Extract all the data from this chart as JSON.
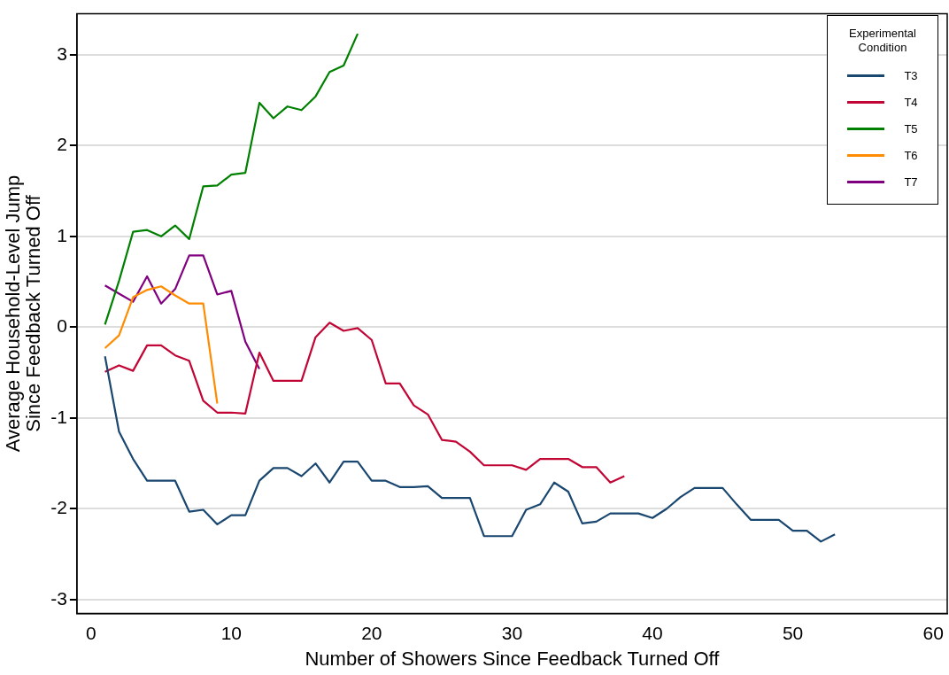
{
  "chart_data": {
    "type": "line",
    "xlabel": "Number of Showers Since Feedback Turned Off",
    "ylabel": "Average Household-Level Jump\nSince Feedback Turned Off",
    "legend_title": "Experimental\nCondition",
    "legend": "top right",
    "grid": "y",
    "line_style": "solid",
    "marker": "none",
    "xlim": [
      -1,
      61
    ],
    "xticks": [
      0,
      10,
      20,
      30,
      40,
      50,
      60
    ],
    "ylim": [
      -3.15,
      3.45
    ],
    "yticks": [
      -3,
      -2,
      -1,
      0,
      1,
      2,
      3
    ],
    "series": [
      {
        "name": "T3",
        "color": "#1a476f",
        "x": [
          1,
          2,
          3,
          4,
          5,
          6,
          7,
          8,
          9,
          10,
          11,
          12,
          13,
          14,
          15,
          16,
          17,
          18,
          19,
          20,
          21,
          22,
          23,
          24,
          25,
          26,
          27,
          28,
          29,
          30,
          31,
          32,
          33,
          34,
          35,
          36,
          37,
          38,
          39,
          40,
          41,
          42,
          43,
          44,
          45,
          46,
          47,
          48,
          49,
          50,
          51,
          52,
          53
        ],
        "values": [
          -0.32,
          -1.15,
          -1.45,
          -1.69,
          -1.69,
          -1.69,
          -2.03,
          -2.01,
          -2.17,
          -2.07,
          -2.07,
          -1.69,
          -1.55,
          -1.55,
          -1.64,
          -1.5,
          -1.71,
          -1.48,
          -1.48,
          -1.69,
          -1.69,
          -1.76,
          -1.76,
          -1.75,
          -1.88,
          -1.88,
          -1.88,
          -2.3,
          -2.3,
          -2.3,
          -2.01,
          -1.95,
          -1.71,
          -1.81,
          -2.16,
          -2.14,
          -2.05,
          -2.05,
          -2.05,
          -2.1,
          -2.0,
          -1.87,
          -1.77,
          -1.77,
          -1.77,
          -1.95,
          -2.12,
          -2.12,
          -2.12,
          -2.24,
          -2.24,
          -2.36,
          -2.28
        ]
      },
      {
        "name": "T4",
        "color": "#c10534",
        "x": [
          1,
          2,
          3,
          4,
          5,
          6,
          7,
          8,
          9,
          10,
          11,
          12,
          13,
          14,
          15,
          16,
          17,
          18,
          19,
          20,
          21,
          22,
          23,
          24,
          25,
          26,
          27,
          28,
          29,
          30,
          31,
          32,
          33,
          34,
          35,
          36,
          37,
          38
        ],
        "values": [
          -0.49,
          -0.42,
          -0.48,
          -0.2,
          -0.2,
          -0.31,
          -0.37,
          -0.81,
          -0.94,
          -0.94,
          -0.95,
          -0.28,
          -0.59,
          -0.59,
          -0.59,
          -0.11,
          0.05,
          -0.04,
          -0.01,
          -0.14,
          -0.62,
          -0.62,
          -0.86,
          -0.96,
          -1.24,
          -1.26,
          -1.37,
          -1.52,
          -1.52,
          -1.52,
          -1.57,
          -1.45,
          -1.45,
          -1.45,
          -1.54,
          -1.54,
          -1.71,
          -1.64
        ]
      },
      {
        "name": "T5",
        "color": "#008000",
        "x": [
          1,
          2,
          3,
          4,
          5,
          6,
          7,
          8,
          9,
          10,
          11,
          12,
          13,
          14,
          15,
          16,
          17,
          18,
          19
        ],
        "values": [
          0.03,
          0.51,
          1.05,
          1.07,
          1.0,
          1.12,
          0.97,
          1.55,
          1.56,
          1.68,
          1.7,
          2.47,
          2.3,
          2.43,
          2.39,
          2.54,
          2.81,
          2.88,
          3.23
        ]
      },
      {
        "name": "T6",
        "color": "#ff8c00",
        "x": [
          1,
          2,
          3,
          4,
          5,
          6,
          7,
          8,
          9
        ],
        "values": [
          -0.23,
          -0.09,
          0.33,
          0.41,
          0.45,
          0.35,
          0.26,
          0.26,
          -0.84
        ]
      },
      {
        "name": "T7",
        "color": "#800080",
        "x": [
          1,
          2,
          3,
          4,
          5,
          6,
          7,
          8,
          9,
          10,
          11,
          12
        ],
        "values": [
          0.46,
          0.37,
          0.28,
          0.56,
          0.26,
          0.42,
          0.79,
          0.79,
          0.36,
          0.4,
          -0.16,
          -0.46
        ]
      }
    ]
  }
}
